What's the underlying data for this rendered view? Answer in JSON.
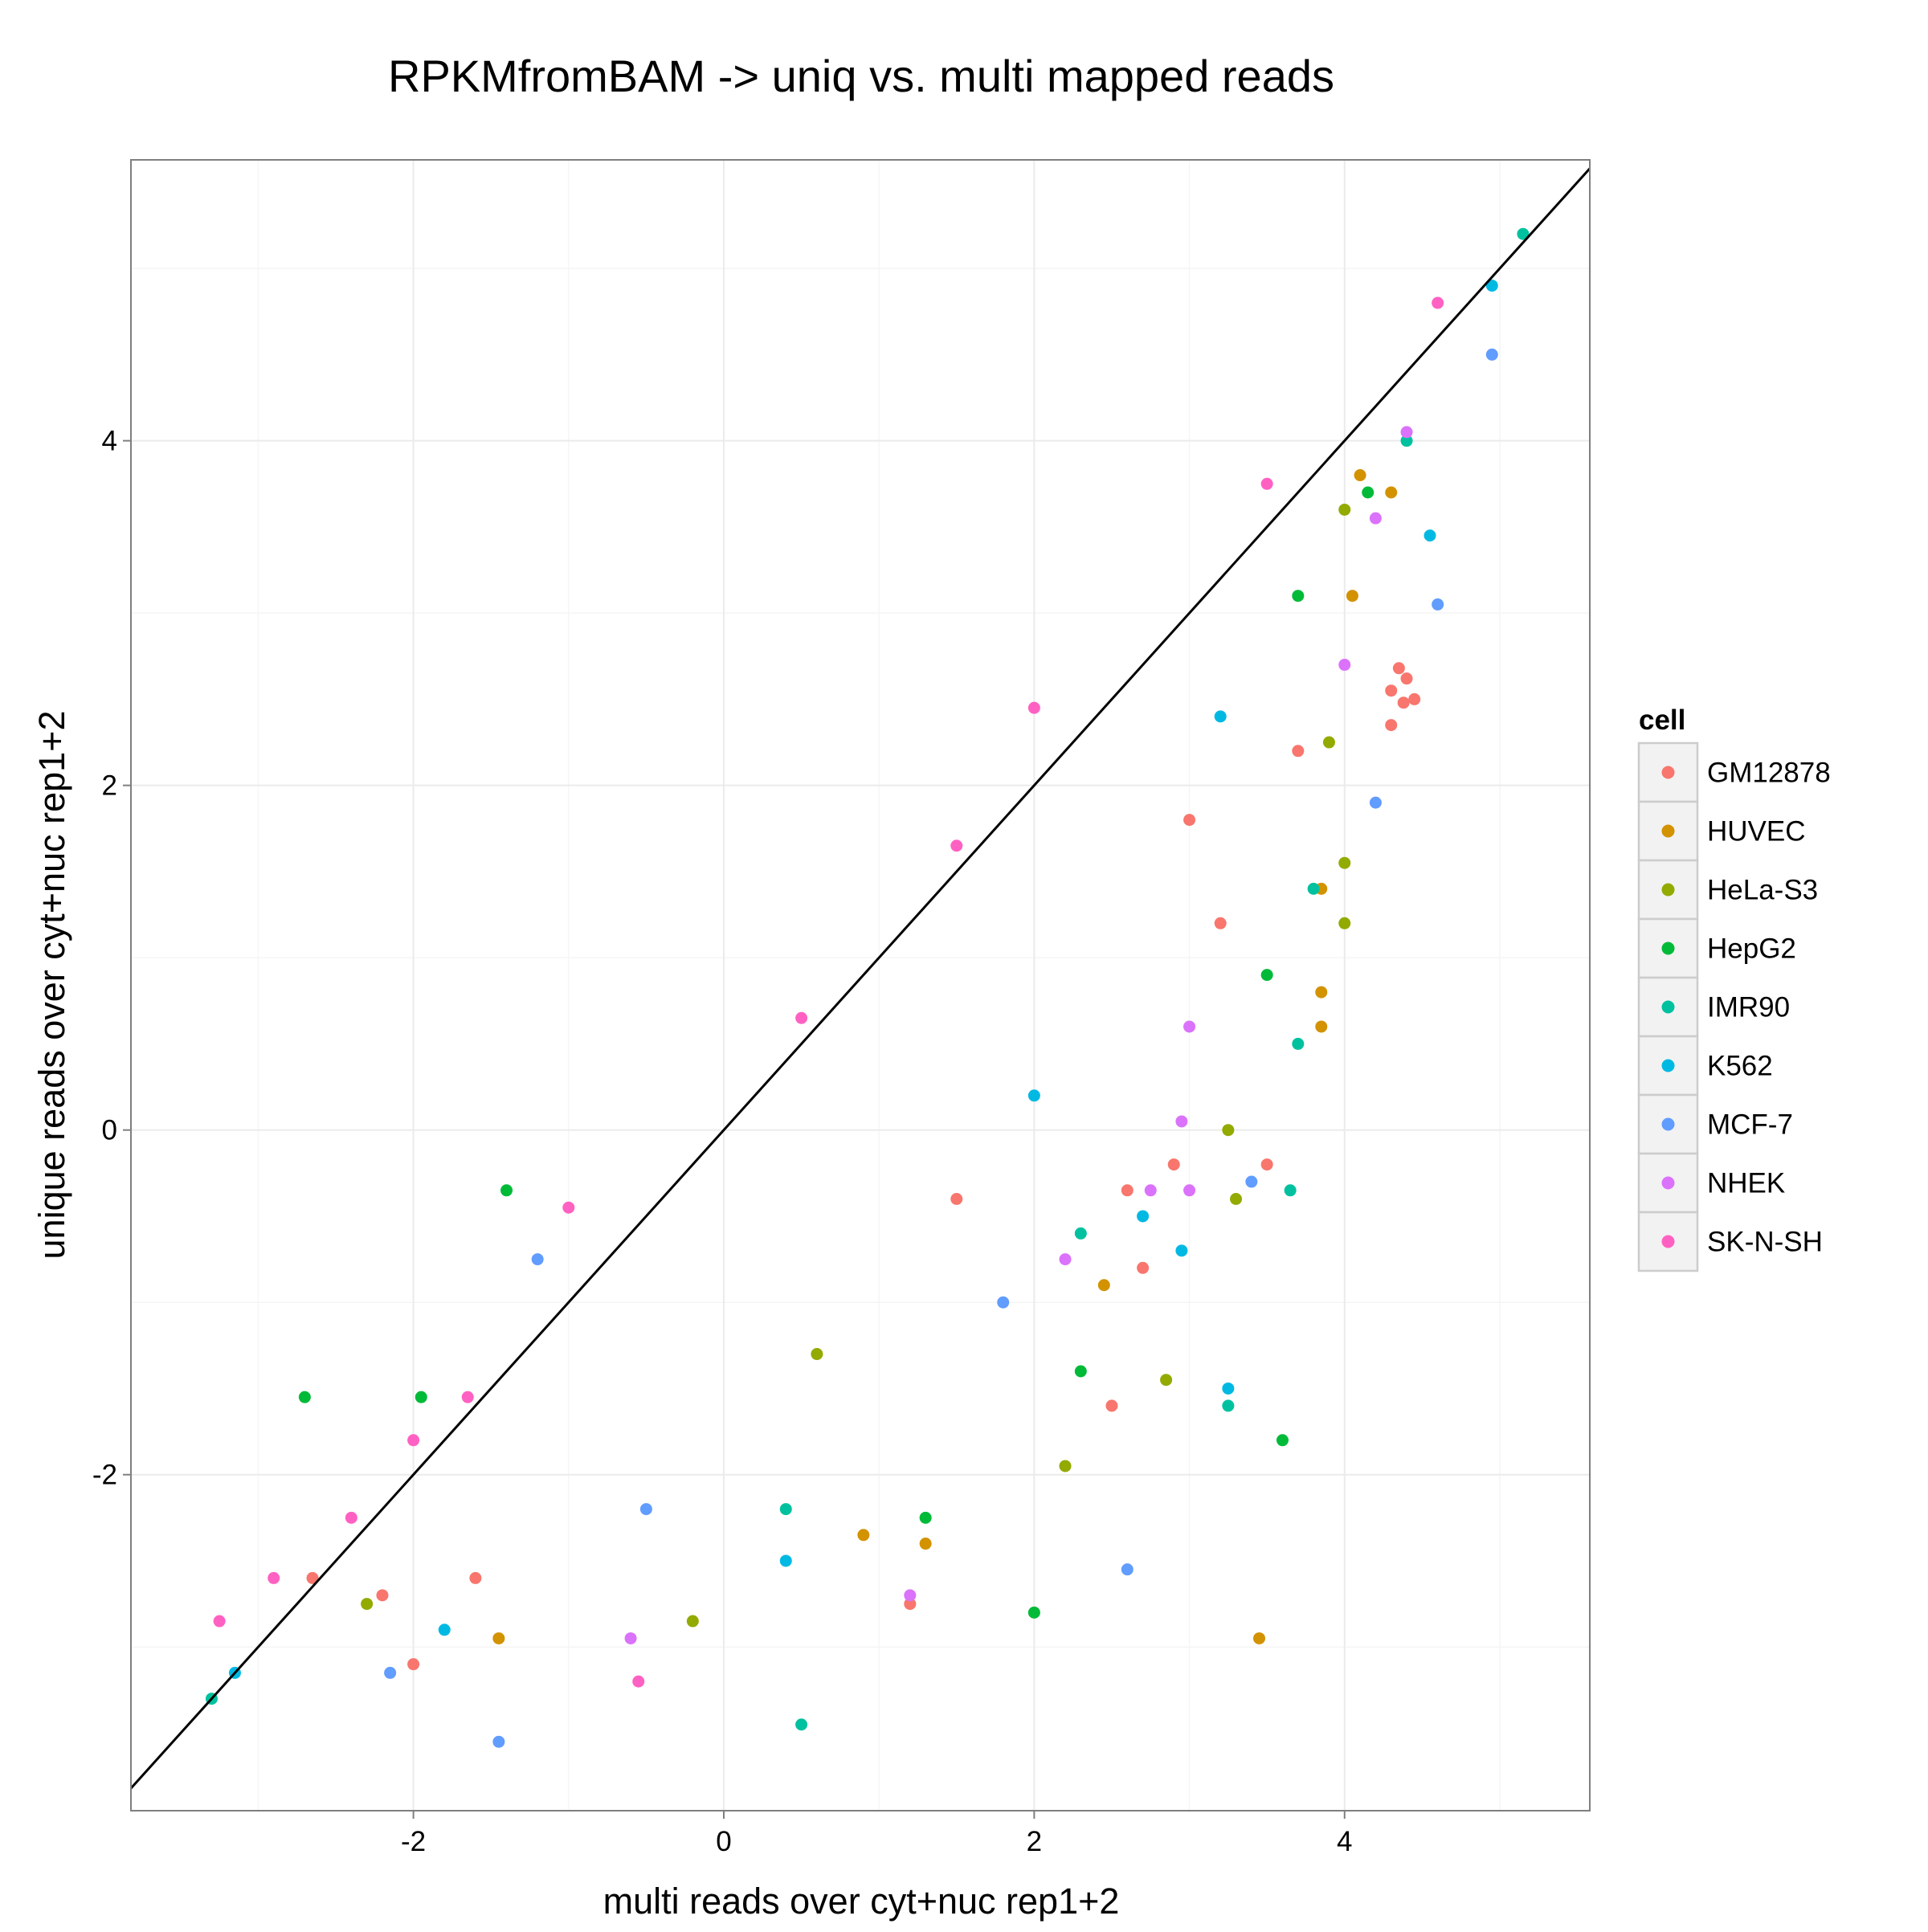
{
  "chart_data": {
    "type": "scatter",
    "title": "RPKMfromBAM -> uniq vs. multi mapped reads",
    "xlabel": "multi reads over cyt+nuc rep1+2",
    "ylabel": "unique reads over cyt+nuc rep1+2",
    "xlim": [
      -3.82,
      5.58
    ],
    "ylim": [
      -3.95,
      5.63
    ],
    "xticks": [
      -2,
      0,
      2,
      4
    ],
    "yticks": [
      -2,
      0,
      2,
      4
    ],
    "xtick_labels": [
      "-2",
      "0",
      "2",
      "4"
    ],
    "ytick_labels": [
      "-2",
      "0",
      "2",
      "4"
    ],
    "grid": true,
    "background": "#ffffff",
    "grid_color": "#ebebeb",
    "reference_line": {
      "slope": 1,
      "intercept": 0,
      "color": "#000000"
    },
    "legend": {
      "title": "cell",
      "placement": "right",
      "entries": [
        "GM12878",
        "HUVEC",
        "HeLa-S3",
        "HepG2",
        "IMR90",
        "K562",
        "MCF-7",
        "NHEK",
        "SK-N-SH"
      ]
    },
    "series_colors": [
      "#F8766D",
      "#D39200",
      "#93AA00",
      "#00BA38",
      "#00C19F",
      "#00B9E3",
      "#619CFF",
      "#DB72FB",
      "#FF61C3"
    ],
    "series": [
      {
        "name": "GM12878",
        "points": [
          [
            4.3,
            2.55
          ],
          [
            4.38,
            2.48
          ],
          [
            4.45,
            2.5
          ],
          [
            4.35,
            2.68
          ],
          [
            4.4,
            2.62
          ],
          [
            4.3,
            2.35
          ],
          [
            3.7,
            2.2
          ],
          [
            3.2,
            1.2
          ],
          [
            2.9,
            -0.2
          ],
          [
            2.6,
            -0.35
          ],
          [
            2.7,
            -0.8
          ],
          [
            -1.6,
            -2.6
          ],
          [
            -2.2,
            -2.7
          ],
          [
            -2.65,
            -2.6
          ],
          [
            3.5,
            -0.2
          ],
          [
            -2.0,
            -3.1
          ],
          [
            1.2,
            -2.75
          ],
          [
            2.5,
            -1.6
          ],
          [
            3.0,
            1.8
          ],
          [
            1.5,
            -0.4
          ]
        ]
      },
      {
        "name": "HUVEC",
        "points": [
          [
            4.3,
            3.7
          ],
          [
            4.05,
            3.1
          ],
          [
            3.85,
            1.4
          ],
          [
            3.85,
            0.6
          ],
          [
            3.85,
            0.8
          ],
          [
            1.3,
            -2.4
          ],
          [
            -1.45,
            -2.95
          ],
          [
            0.9,
            -2.35
          ],
          [
            3.45,
            -2.95
          ],
          [
            4.1,
            3.8
          ],
          [
            2.45,
            -0.9
          ]
        ]
      },
      {
        "name": "HeLa-S3",
        "points": [
          [
            4.0,
            1.55
          ],
          [
            4.0,
            1.2
          ],
          [
            4.0,
            3.6
          ],
          [
            3.9,
            2.25
          ],
          [
            3.25,
            0.0
          ],
          [
            2.85,
            -1.45
          ],
          [
            -0.2,
            -2.85
          ],
          [
            -2.3,
            -2.75
          ],
          [
            0.6,
            -1.3
          ],
          [
            3.3,
            -0.4
          ],
          [
            2.2,
            -1.95
          ]
        ]
      },
      {
        "name": "HepG2",
        "points": [
          [
            3.6,
            -1.8
          ],
          [
            2.0,
            -2.8
          ],
          [
            -1.4,
            -0.35
          ],
          [
            -1.95,
            -1.55
          ],
          [
            -2.7,
            -1.55
          ],
          [
            4.15,
            3.7
          ],
          [
            3.7,
            3.1
          ],
          [
            3.5,
            0.9
          ],
          [
            2.3,
            -1.4
          ],
          [
            1.3,
            -2.25
          ]
        ]
      },
      {
        "name": "IMR90",
        "points": [
          [
            0.5,
            -3.45
          ],
          [
            3.65,
            -0.35
          ],
          [
            3.25,
            -1.6
          ],
          [
            3.7,
            0.5
          ],
          [
            5.15,
            5.2
          ],
          [
            4.4,
            4.0
          ],
          [
            -3.3,
            -3.3
          ],
          [
            3.8,
            1.4
          ],
          [
            2.3,
            -0.6
          ],
          [
            0.4,
            -2.2
          ]
        ]
      },
      {
        "name": "K562",
        "points": [
          [
            4.55,
            3.45
          ],
          [
            3.25,
            -1.5
          ],
          [
            2.95,
            -0.7
          ],
          [
            4.95,
            4.9
          ],
          [
            3.2,
            2.4
          ],
          [
            2.7,
            -0.5
          ],
          [
            -3.15,
            -3.15
          ],
          [
            0.4,
            -2.5
          ],
          [
            -1.8,
            -2.9
          ],
          [
            2.0,
            0.2
          ]
        ]
      },
      {
        "name": "MCF-7",
        "points": [
          [
            -1.45,
            -3.55
          ],
          [
            -2.15,
            -3.15
          ],
          [
            4.95,
            4.5
          ],
          [
            4.6,
            3.05
          ],
          [
            4.2,
            1.9
          ],
          [
            2.6,
            -2.55
          ],
          [
            -1.2,
            -0.75
          ],
          [
            3.4,
            -0.3
          ],
          [
            1.8,
            -1.0
          ],
          [
            -0.5,
            -2.2
          ]
        ]
      },
      {
        "name": "NHEK",
        "points": [
          [
            4.4,
            4.05
          ],
          [
            4.2,
            3.55
          ],
          [
            3.0,
            -0.35
          ],
          [
            2.75,
            -0.35
          ],
          [
            2.95,
            0.05
          ],
          [
            -0.6,
            -2.95
          ],
          [
            1.2,
            -2.7
          ],
          [
            3.0,
            0.6
          ],
          [
            4.0,
            2.7
          ],
          [
            2.2,
            -0.75
          ]
        ]
      },
      {
        "name": "SK-N-SH",
        "points": [
          [
            -1.65,
            -1.55
          ],
          [
            -2.4,
            -2.25
          ],
          [
            -2.9,
            -2.6
          ],
          [
            -3.25,
            -2.85
          ],
          [
            2.0,
            2.45
          ],
          [
            -0.55,
            -3.2
          ],
          [
            -1.0,
            -0.45
          ],
          [
            0.5,
            0.65
          ],
          [
            1.5,
            1.65
          ],
          [
            3.5,
            3.75
          ],
          [
            4.6,
            4.8
          ],
          [
            -2.0,
            -1.8
          ]
        ]
      }
    ]
  }
}
